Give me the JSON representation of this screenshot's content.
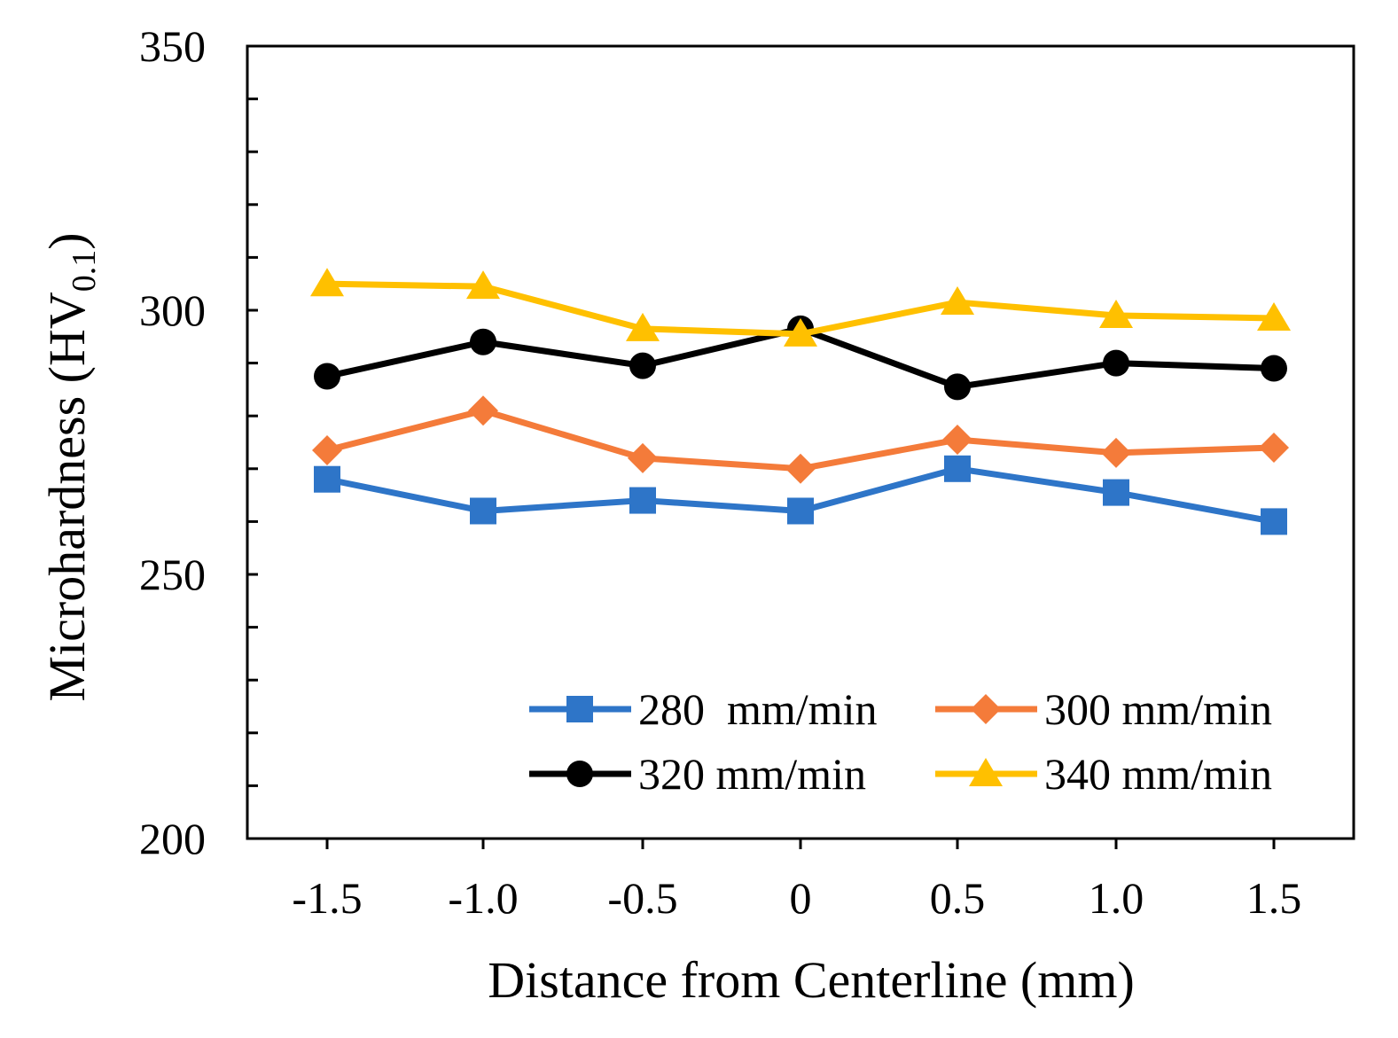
{
  "chart_data": {
    "type": "line",
    "title": "",
    "xlabel": "Distance from Centerline (mm)",
    "ylabel_main": "Microhardness (HV",
    "ylabel_sub": "0.1",
    "ylabel_close": ")",
    "x": [
      -1.5,
      -1.0,
      -0.5,
      0,
      0.5,
      1.0,
      1.5
    ],
    "x_tick_labels": [
      "-1.5",
      "-1.0",
      "-0.5",
      "0",
      "0.5",
      "1.0",
      "1.5"
    ],
    "xlim": [
      -1.75,
      1.75
    ],
    "ylim": [
      200,
      350
    ],
    "y_ticks": [
      200,
      250,
      300,
      350
    ],
    "y_tick_labels": [
      "200",
      "250",
      "300",
      "350"
    ],
    "y_minor_step": 10,
    "grid": false,
    "legend_position": "bottom-right",
    "series": [
      {
        "name": "280  mm/min",
        "color": "#2E75C8",
        "marker": "square",
        "values": [
          268,
          262,
          264,
          262,
          270,
          265.5,
          260
        ]
      },
      {
        "name": "300 mm/min",
        "color": "#F47B3A",
        "marker": "diamond",
        "values": [
          273.5,
          281,
          272,
          270,
          275.5,
          273,
          274
        ]
      },
      {
        "name": "320 mm/min",
        "color": "#000000",
        "marker": "circle",
        "values": [
          287.5,
          294,
          289.5,
          296.5,
          285.5,
          290,
          289
        ]
      },
      {
        "name": "340 mm/min",
        "color": "#FFC000",
        "marker": "triangle",
        "values": [
          305,
          304.5,
          296.5,
          295.5,
          301.5,
          299,
          298.5
        ]
      }
    ]
  }
}
